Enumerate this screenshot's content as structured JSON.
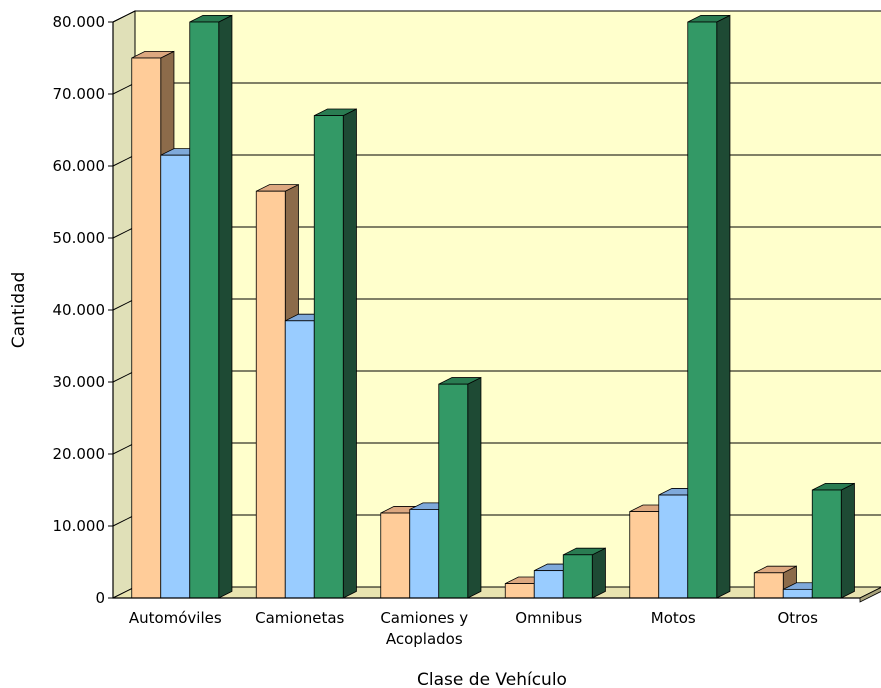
{
  "chart_data": {
    "type": "bar",
    "xlabel": "Clase de Vehículo",
    "ylabel": "Cantidad",
    "ylim": [
      0,
      80000
    ],
    "yticks": [
      "0",
      "10.000",
      "20.000",
      "30.000",
      "40.000",
      "50.000",
      "60.000",
      "70.000",
      "80.000"
    ],
    "grid": true,
    "categories": [
      "Automóviles",
      "Camionetas",
      "Camiones y\nAcoplados",
      "Omnibus",
      "Motos",
      "Otros"
    ],
    "series": [
      {
        "values": [
          75000,
          56500,
          11800,
          2000,
          12000,
          3500
        ]
      },
      {
        "values": [
          61500,
          38500,
          12300,
          3800,
          14300,
          1200
        ]
      },
      {
        "values": [
          80000,
          67000,
          29700,
          6000,
          80000,
          15000
        ]
      }
    ],
    "colors": {
      "series": [
        {
          "front": "#FFCC99",
          "side": "#8C6B4A",
          "top": "#DDA880"
        },
        {
          "front": "#99CCFF",
          "side": "#4F6F92",
          "top": "#7FA9DA"
        },
        {
          "front": "#339966",
          "side": "#1E4A34",
          "top": "#2A7C52"
        }
      ],
      "wall": "#FFFFCC",
      "floor": "#A8A27C",
      "floor_top": "#E8E3B0",
      "grid": "#000000"
    }
  }
}
